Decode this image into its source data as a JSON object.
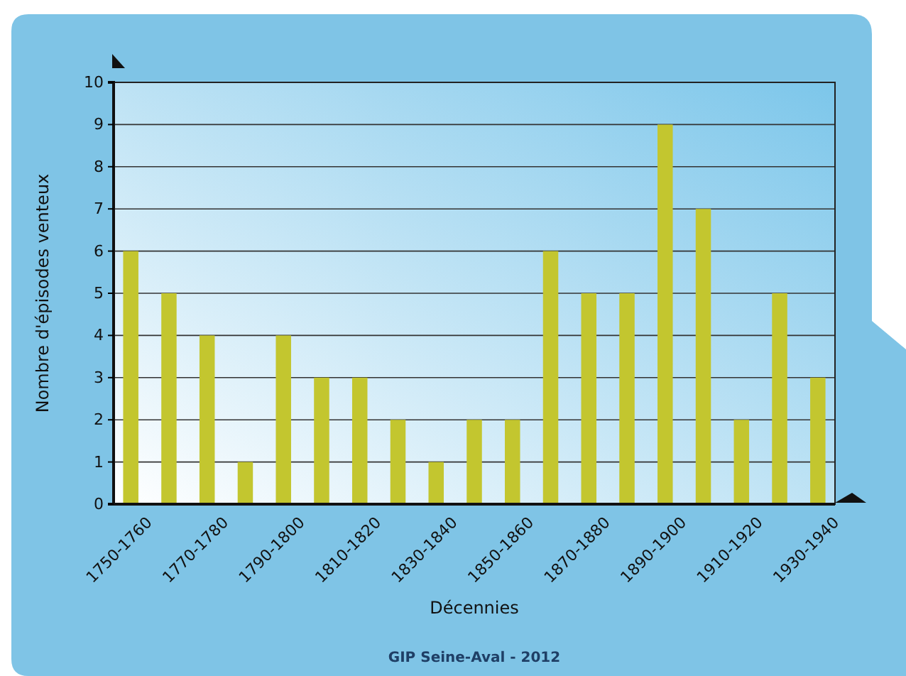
{
  "chart_data": {
    "type": "bar",
    "xlabel": "Décennies",
    "ylabel": "Nombre d'épisodes venteux",
    "categories": [
      "1750-1760",
      null,
      "1770-1780",
      null,
      "1790-1800",
      null,
      "1810-1820",
      null,
      "1830-1840",
      null,
      "1850-1860",
      null,
      "1870-1880",
      null,
      "1890-1900",
      null,
      "1910-1920",
      null,
      "1930-1940"
    ],
    "values": [
      6,
      5,
      4,
      1,
      4,
      3,
      3,
      2,
      1,
      2,
      2,
      6,
      5,
      5,
      9,
      7,
      2,
      5,
      3
    ],
    "color": "#c3c62f",
    "ylim": [
      0,
      10
    ],
    "yticks": [
      0,
      1,
      2,
      3,
      4,
      5,
      6,
      7,
      8,
      9,
      10
    ],
    "grid": "y",
    "annotations": [
      "GIP Seine-Aval - 2012"
    ]
  }
}
